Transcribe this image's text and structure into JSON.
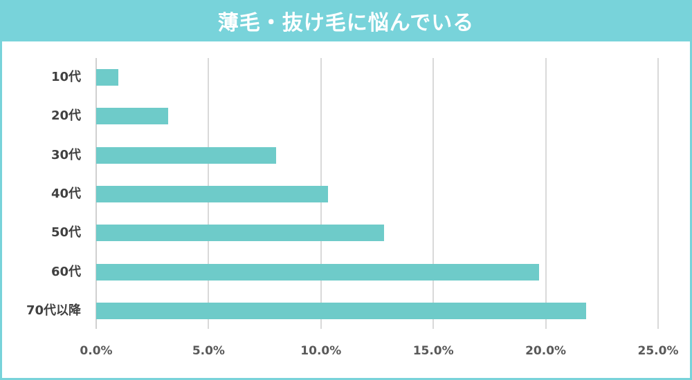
{
  "title": "薄毛・抜け毛に悩んでいる",
  "colors": {
    "frame": "#78d3da",
    "bar": "#6ecbc9",
    "grid": "#d9d9d9",
    "text": "#404040"
  },
  "x_axis": {
    "ticks": [
      "0.0%",
      "5.0%",
      "10.0%",
      "15.0%",
      "20.0%",
      "25.0%"
    ]
  },
  "categories": [
    {
      "label": "10代",
      "value": 1.0
    },
    {
      "label": "20代",
      "value": 3.2
    },
    {
      "label": "30代",
      "value": 8.0
    },
    {
      "label": "40代",
      "value": 10.3
    },
    {
      "label": "50代",
      "value": 12.8
    },
    {
      "label": "60代",
      "value": 19.7
    },
    {
      "label": "70代以降",
      "value": 21.8
    }
  ],
  "chart_data": {
    "type": "bar",
    "orientation": "horizontal",
    "title": "薄毛・抜け毛に悩んでいる",
    "categories": [
      "10代",
      "20代",
      "30代",
      "40代",
      "50代",
      "60代",
      "70代以降"
    ],
    "values": [
      1.0,
      3.2,
      8.0,
      10.3,
      12.8,
      19.7,
      21.8
    ],
    "xlabel": "",
    "ylabel": "",
    "xlim": [
      0,
      25
    ],
    "x_tick_labels": [
      "0.0%",
      "5.0%",
      "10.0%",
      "15.0%",
      "20.0%",
      "25.0%"
    ],
    "unit": "%",
    "grid": true,
    "legend": "none"
  }
}
